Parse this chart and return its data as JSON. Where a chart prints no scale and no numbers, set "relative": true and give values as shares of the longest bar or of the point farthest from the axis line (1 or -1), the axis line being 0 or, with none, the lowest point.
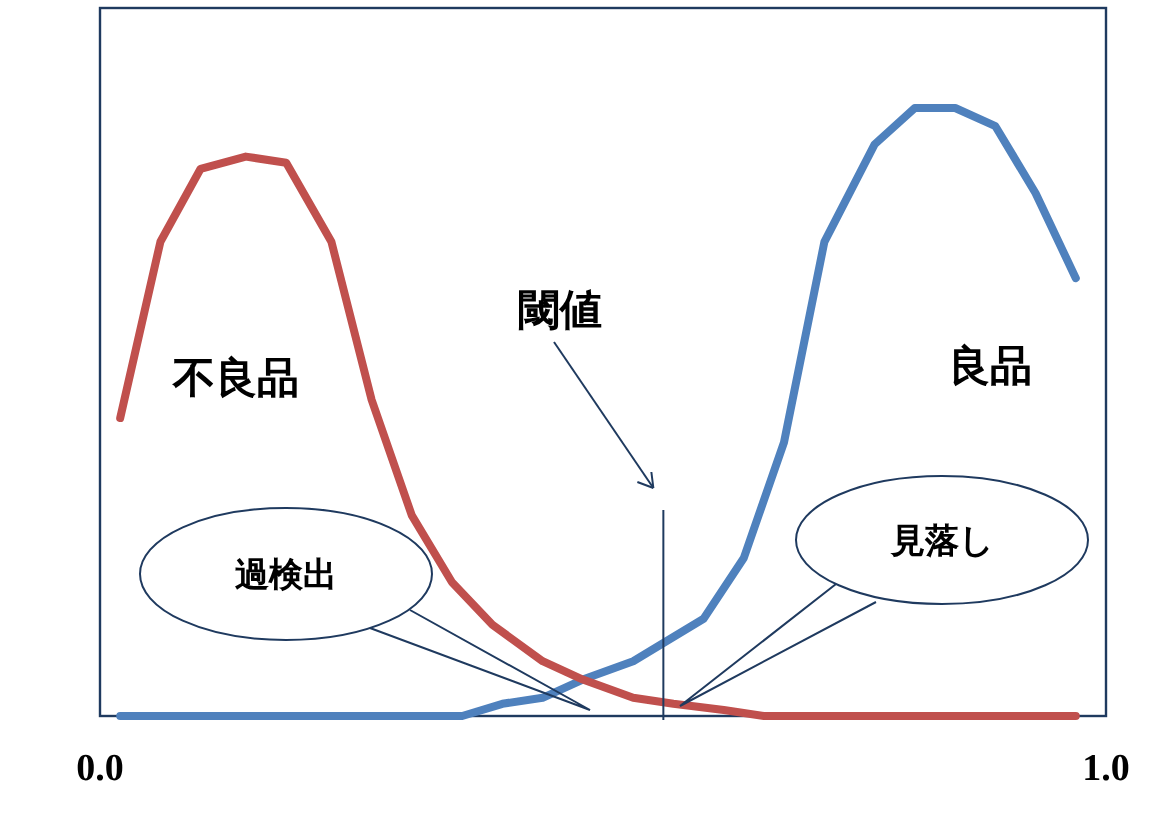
{
  "chart_data": {
    "type": "line",
    "relative": true,
    "tick_labels": "x",
    "xlim": [
      0,
      1
    ],
    "xticks": [
      {
        "value": 0,
        "label": "0.0"
      },
      {
        "value": 1,
        "label": "1.0"
      }
    ],
    "series": [
      {
        "name": "良品",
        "color": "#4f81bd",
        "x": [
          0.02,
          0.36,
          0.4,
          0.44,
          0.48,
          0.53,
          0.56,
          0.6,
          0.64,
          0.68,
          0.72,
          0.77,
          0.81,
          0.85,
          0.89,
          0.93,
          0.97
        ],
        "values": [
          0,
          0,
          0.02,
          0.03,
          0.06,
          0.09,
          0.12,
          0.16,
          0.26,
          0.45,
          0.78,
          0.94,
          1,
          1,
          0.97,
          0.86,
          0.72
        ]
      },
      {
        "name": "不良品",
        "color": "#c0504d",
        "x": [
          0.02,
          0.06,
          0.1,
          0.145,
          0.185,
          0.23,
          0.27,
          0.31,
          0.35,
          0.39,
          0.44,
          0.48,
          0.53,
          0.57,
          0.62,
          0.66,
          0.97
        ],
        "values": [
          0.49,
          0.78,
          0.9,
          0.92,
          0.91,
          0.78,
          0.52,
          0.33,
          0.22,
          0.15,
          0.09,
          0.06,
          0.03,
          0.02,
          0.01,
          0,
          0
        ]
      }
    ],
    "ref_lines": [
      {
        "axis": "x",
        "value": 0.56
      }
    ],
    "annotations": [
      "過検出",
      "見落し",
      "閾値"
    ]
  }
}
